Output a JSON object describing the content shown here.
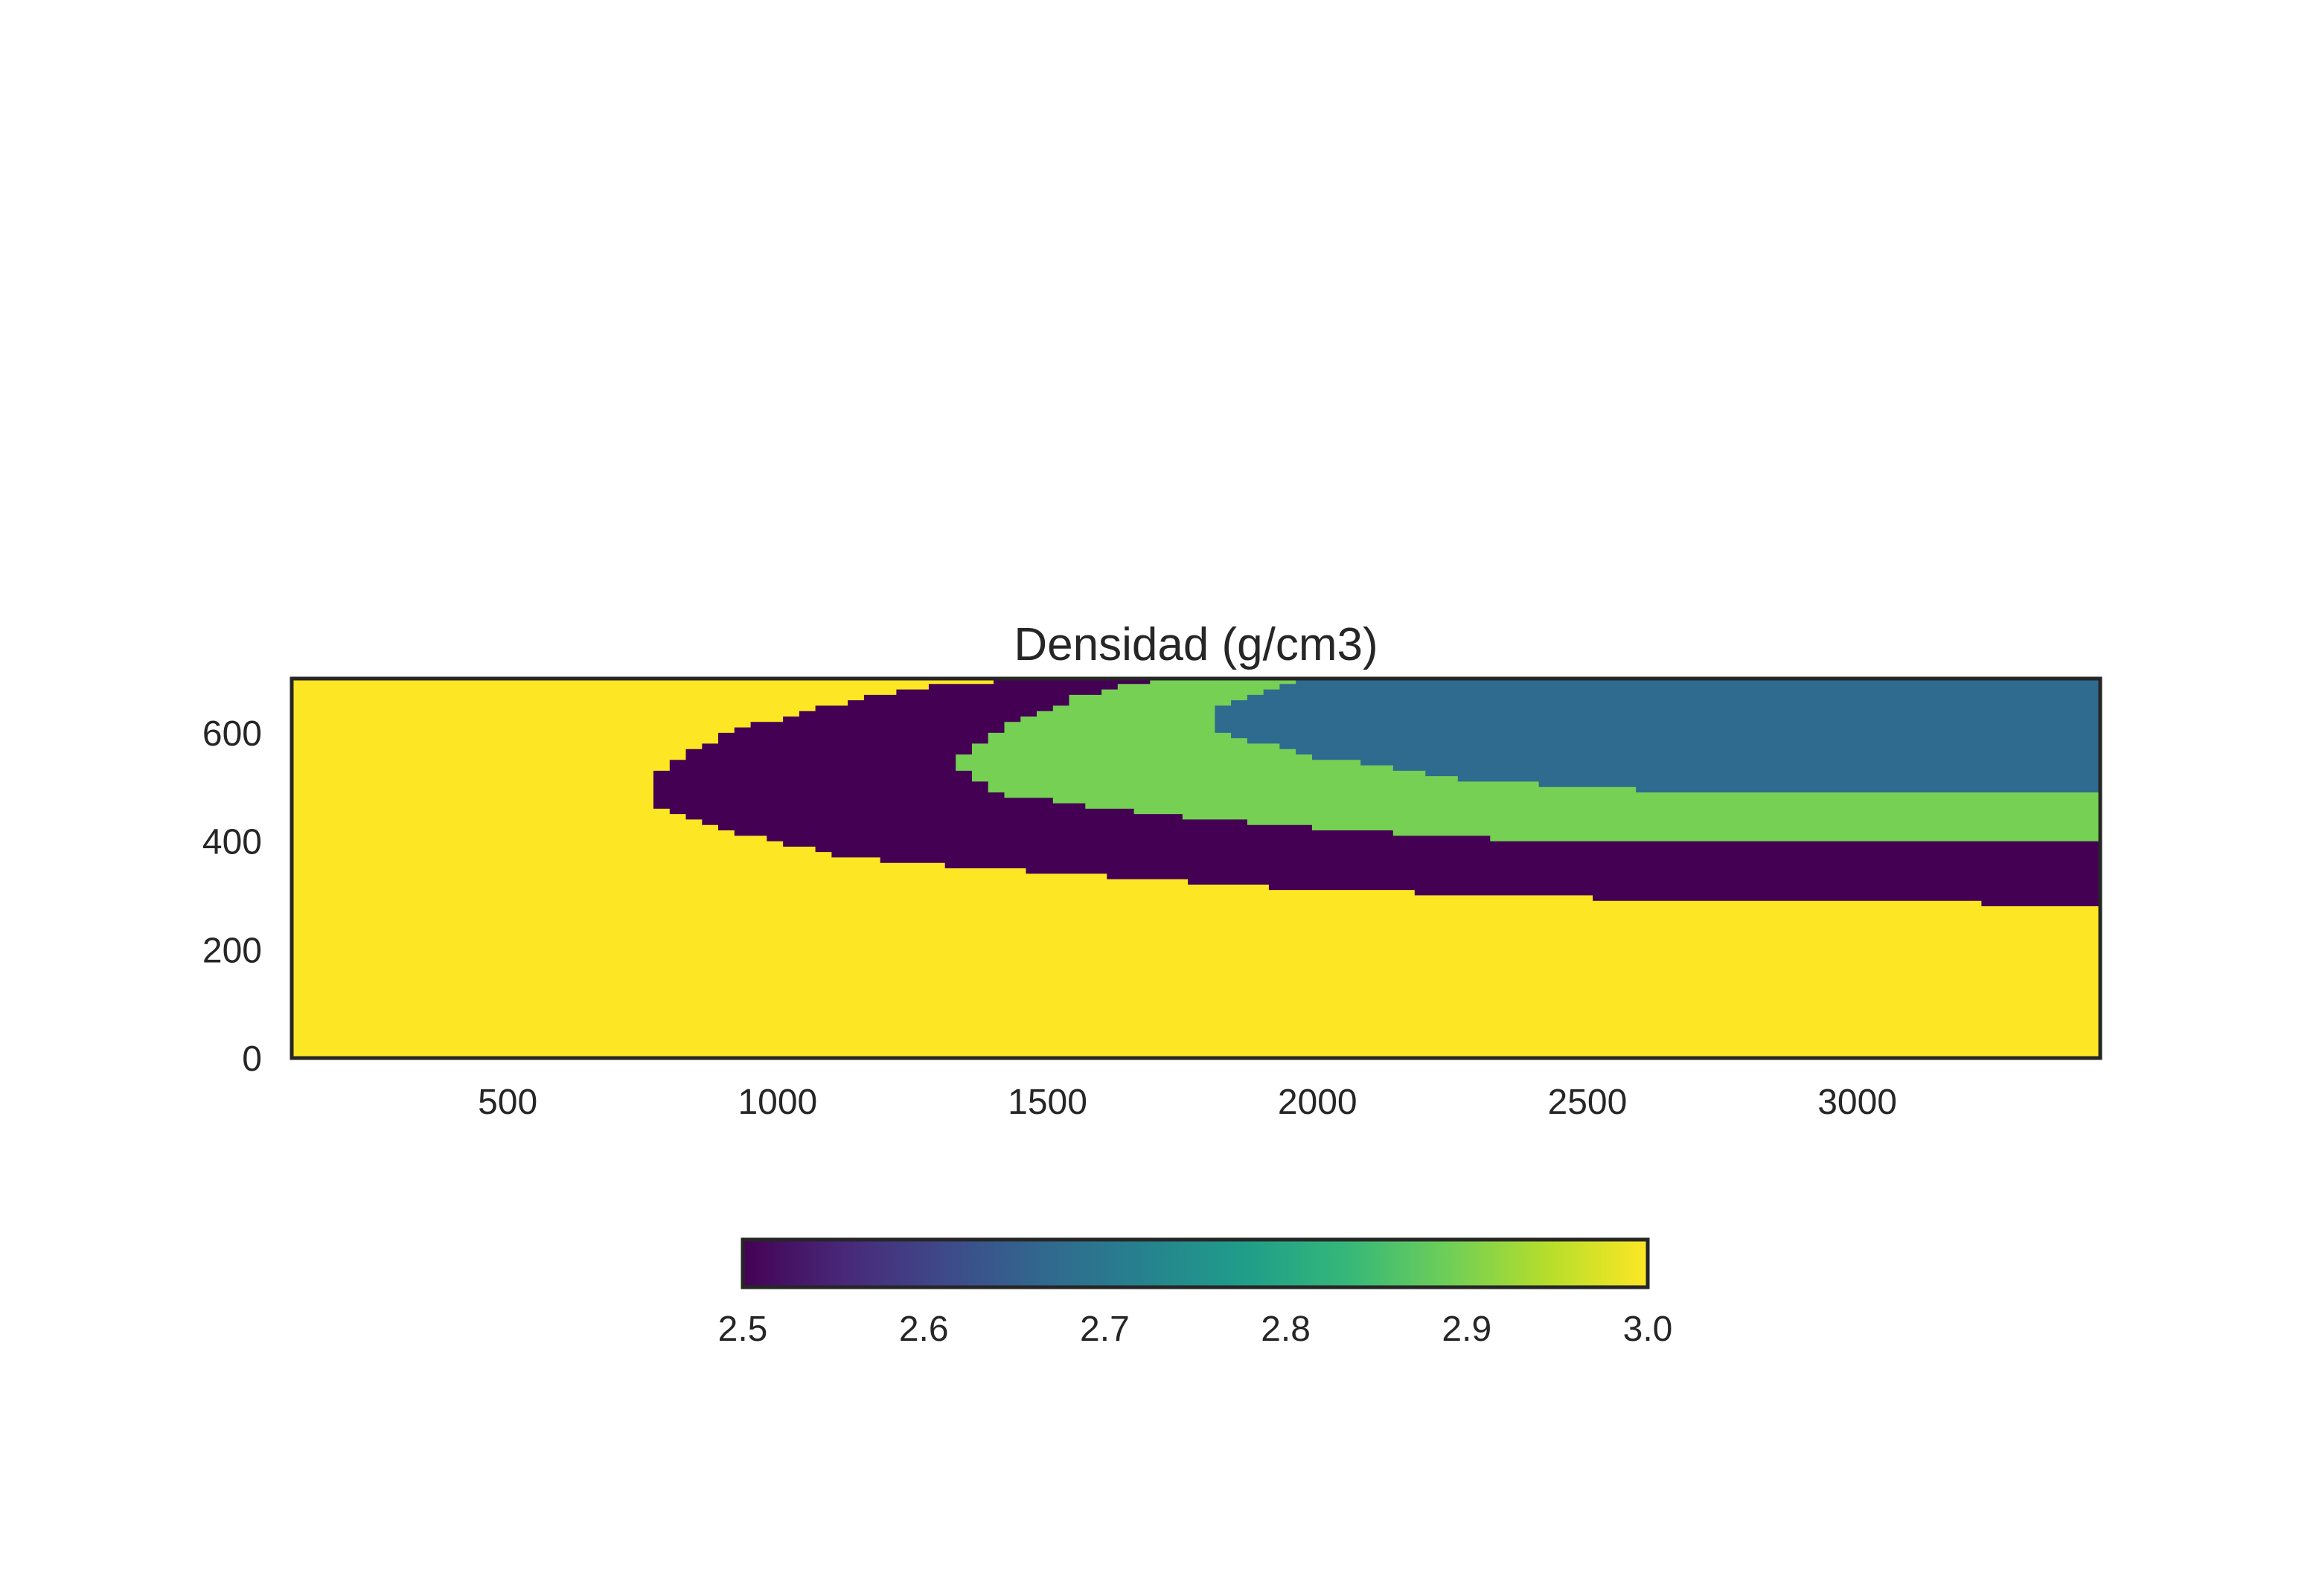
{
  "chart_data": {
    "type": "heatmap",
    "title": "Densidad (g/cm3)",
    "xlabel": "",
    "ylabel": "",
    "xlim": [
      100,
      3450
    ],
    "ylim": [
      0,
      700
    ],
    "x_ticks": [
      "500",
      "1000",
      "1500",
      "2000",
      "2500",
      "3000"
    ],
    "y_ticks": [
      "0",
      "200",
      "400",
      "600"
    ],
    "grid": false,
    "colormap": "viridis",
    "colorbar": {
      "orientation": "horizontal",
      "placement": "bottom",
      "range": [
        2.5,
        3.0
      ],
      "ticks": [
        "2.5",
        "2.6",
        "2.7",
        "2.8",
        "2.9",
        "3.0"
      ],
      "stops": [
        "#440154",
        "#482878",
        "#3e4989",
        "#31688e",
        "#26828e",
        "#1f9e89",
        "#35b779",
        "#6ece58",
        "#b5de2b",
        "#fde725"
      ]
    },
    "background_value": 3.0,
    "layers": [
      {
        "value": 2.5,
        "color": "#440154",
        "x_start": 770,
        "x_end": 3450,
        "upper_boundary": [
          [
            770,
            520
          ],
          [
            900,
            600
          ],
          [
            1100,
            650
          ],
          [
            1300,
            690
          ],
          [
            1500,
            700
          ],
          [
            3450,
            700
          ]
        ],
        "lower_boundary": [
          [
            770,
            470
          ],
          [
            900,
            420
          ],
          [
            1100,
            375
          ],
          [
            1300,
            355
          ],
          [
            1600,
            335
          ],
          [
            2000,
            310
          ],
          [
            2500,
            295
          ],
          [
            3000,
            290
          ],
          [
            3450,
            280
          ]
        ]
      },
      {
        "value": 2.9,
        "color": "#75d054",
        "x_start": 1330,
        "x_end": 3450,
        "upper_boundary": [
          [
            1330,
            545
          ],
          [
            1400,
            600
          ],
          [
            1550,
            665
          ],
          [
            1700,
            700
          ],
          [
            3450,
            700
          ]
        ],
        "lower_boundary": [
          [
            1330,
            545
          ],
          [
            1400,
            490
          ],
          [
            1600,
            460
          ],
          [
            1800,
            440
          ],
          [
            2200,
            410
          ],
          [
            2600,
            395
          ],
          [
            3450,
            395
          ]
        ]
      },
      {
        "value": 2.7,
        "color": "#2f6b8e",
        "x_start": 1810,
        "x_end": 3450,
        "upper_boundary": [
          [
            1810,
            640
          ],
          [
            1900,
            680
          ],
          [
            2000,
            700
          ],
          [
            3450,
            700
          ]
        ],
        "lower_boundary": [
          [
            1810,
            600
          ],
          [
            2000,
            555
          ],
          [
            2300,
            510
          ],
          [
            2700,
            490
          ],
          [
            3450,
            485
          ]
        ]
      }
    ]
  }
}
